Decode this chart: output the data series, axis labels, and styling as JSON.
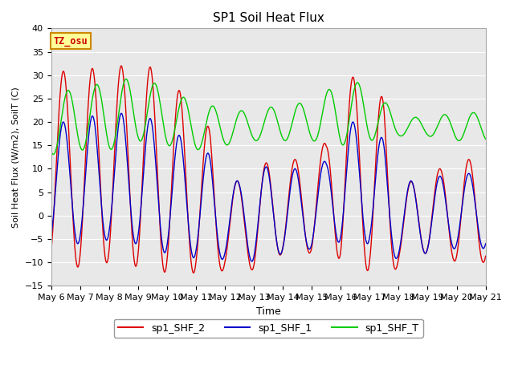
{
  "title": "SP1 Soil Heat Flux",
  "xlabel": "Time",
  "ylabel": "Soil Heat Flux (W/m2), SoilT (C)",
  "ylim": [
    -15,
    40
  ],
  "yticks": [
    -15,
    -10,
    -5,
    0,
    5,
    10,
    15,
    20,
    25,
    30,
    35,
    40
  ],
  "x_start_day": 6,
  "x_end_day": 21,
  "x_tick_days": [
    6,
    7,
    8,
    9,
    10,
    11,
    12,
    13,
    14,
    15,
    16,
    17,
    18,
    19,
    20,
    21
  ],
  "line_colors": [
    "#dd0000",
    "#0000cc",
    "#00cc00"
  ],
  "line_labels": [
    "sp1_SHF_2",
    "sp1_SHF_1",
    "sp1_SHF_T"
  ],
  "bg_color": "#e8e8e8",
  "watermark_text": "TZ_osu",
  "watermark_bg": "#ffff99",
  "watermark_border": "#cc8800",
  "watermark_text_color": "#cc0000"
}
